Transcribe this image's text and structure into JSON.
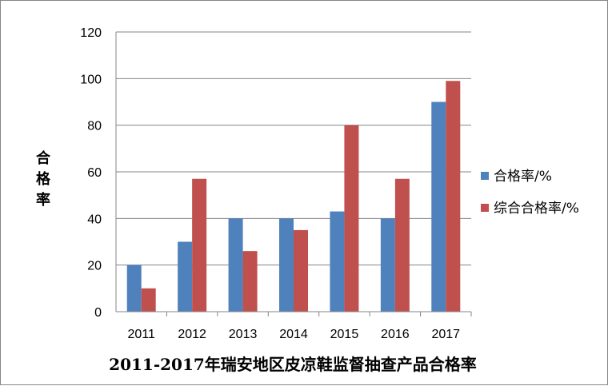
{
  "chart_data": {
    "type": "bar",
    "title": "2011-2017年瑞安地区皮凉鞋监督抽查产品合格率",
    "xlabel": "",
    "ylabel": "合格率",
    "categories": [
      "2011",
      "2012",
      "2013",
      "2014",
      "2015",
      "2016",
      "2017"
    ],
    "ylim": [
      0,
      120
    ],
    "yticks": [
      0,
      20,
      40,
      60,
      80,
      100,
      120
    ],
    "grid": true,
    "legend_position": "right",
    "series": [
      {
        "name": "合格率/%",
        "color": "#4F81BD",
        "values": [
          20,
          30,
          40,
          40,
          43,
          40,
          90
        ]
      },
      {
        "name": "综合合格率/%",
        "color": "#C0504D",
        "values": [
          10,
          57,
          26,
          35,
          80,
          57,
          99
        ]
      }
    ]
  }
}
